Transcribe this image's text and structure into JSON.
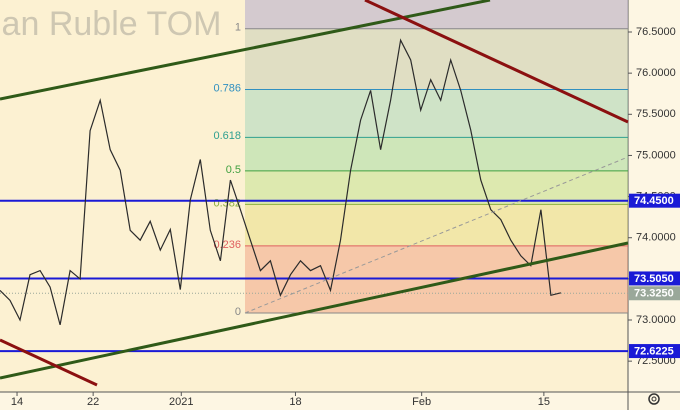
{
  "chart_data": {
    "type": "line",
    "title": "ian Ruble TOM",
    "x": [
      0,
      1,
      2,
      3,
      4,
      5,
      6,
      7,
      8,
      9,
      10,
      11,
      12,
      13,
      14,
      15,
      16,
      17,
      18,
      19,
      20,
      21,
      22,
      23,
      24,
      25,
      26,
      27,
      28,
      29,
      30,
      31,
      32,
      33,
      34,
      35,
      36,
      37,
      38,
      39,
      40,
      41,
      42,
      43,
      44,
      45,
      46,
      47,
      48,
      49,
      50,
      51,
      52,
      53,
      54,
      55,
      56
    ],
    "series": [
      {
        "color": "#2b2b2b",
        "values": [
          73.36,
          73.24,
          73.0,
          73.55,
          73.6,
          73.4,
          72.94,
          73.6,
          73.5,
          75.3,
          75.67,
          75.07,
          74.82,
          74.09,
          73.97,
          74.2,
          73.85,
          74.1,
          73.37,
          74.46,
          74.95,
          74.09,
          73.72,
          74.7,
          74.34,
          73.97,
          73.6,
          73.72,
          73.3,
          73.55,
          73.72,
          73.6,
          73.66,
          73.36,
          73.97,
          74.82,
          75.43,
          75.79,
          75.07,
          75.67,
          76.4,
          76.16,
          75.55,
          75.92,
          75.67,
          76.16,
          75.79,
          75.31,
          74.7,
          74.34,
          74.22,
          73.97,
          73.78,
          73.66,
          74.34,
          73.3,
          73.33
        ]
      }
    ],
    "xlim": [
      0,
      62.7
    ],
    "xticks": [
      {
        "value": 1.7,
        "label": "14"
      },
      {
        "value": 9.3,
        "label": "22"
      },
      {
        "value": 18.1,
        "label": "2021"
      },
      {
        "value": 29.5,
        "label": "18"
      },
      {
        "value": 42.1,
        "label": "Feb"
      },
      {
        "value": 54.3,
        "label": "15"
      }
    ],
    "ylim": [
      72.125,
      76.889
    ],
    "yticks": [
      {
        "value": 72.5,
        "label": "72.5000"
      },
      {
        "value": 73.0,
        "label": "73.0000"
      },
      {
        "value": 73.5,
        "label": "73.5000"
      },
      {
        "value": 74.0,
        "label": "74.0000"
      },
      {
        "value": 74.5,
        "label": "74.5000"
      },
      {
        "value": 75.0,
        "label": "75.0000"
      },
      {
        "value": 75.5,
        "label": "75.5000"
      },
      {
        "value": 76.0,
        "label": "76.0000"
      },
      {
        "value": 76.5,
        "label": "76.5000"
      }
    ],
    "price_lines": [
      {
        "value": 74.45,
        "label": "74.4500",
        "color": "#1a1ad6"
      },
      {
        "value": 73.505,
        "label": "73.5050",
        "color": "#1a1ad6"
      },
      {
        "value": 73.325,
        "label": "73.3250",
        "color": "#9aa89a"
      },
      {
        "value": 72.6225,
        "label": "72.6225",
        "color": "#1a1ad6"
      }
    ],
    "fib_range": [
      73.085,
      76.54
    ],
    "fib_levels": [
      {
        "value": 0,
        "color": "#888888",
        "fill": "rgba(240,150,120,0.45)"
      },
      {
        "value": 0.236,
        "color": "#e06060",
        "fill": "rgba(230,220,120,0.45)"
      },
      {
        "value": 0.382,
        "color": "#8bb040",
        "fill": "rgba(190,225,140,0.5)"
      },
      {
        "value": 0.5,
        "color": "#40a040",
        "fill": "rgba(160,220,160,0.5)"
      },
      {
        "value": 0.618,
        "color": "#30a090",
        "fill": "rgba(170,215,190,0.55)"
      },
      {
        "value": 0.786,
        "color": "#3090c0",
        "fill": "rgba(205,210,185,0.6)"
      },
      {
        "value": 1,
        "color": "#888888",
        "fill": "rgba(195,185,205,0.7)"
      }
    ]
  }
}
